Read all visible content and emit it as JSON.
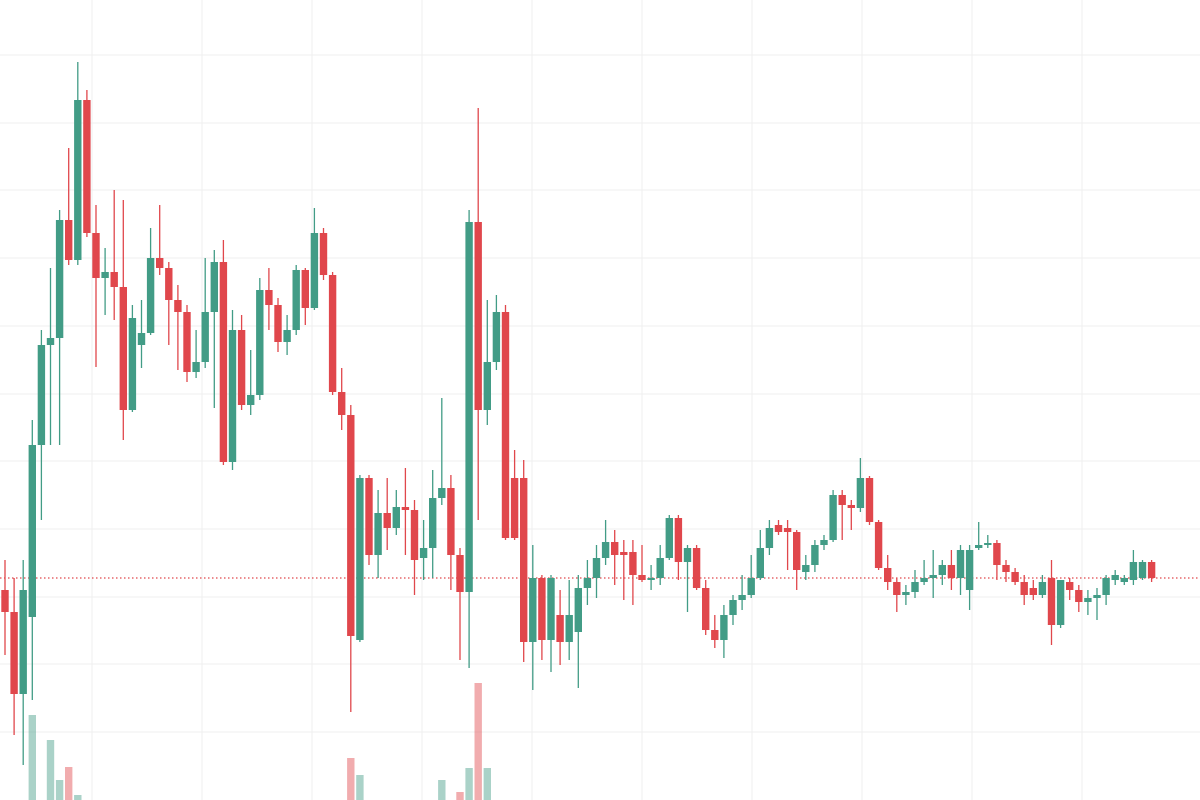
{
  "chart_data": {
    "type": "candlestick",
    "up_color": "#429c86",
    "down_color": "#e0474c",
    "grid": true,
    "ylim": [
      0,
      800
    ],
    "yticks": [
      68,
      136,
      203,
      271,
      339,
      406,
      474,
      542,
      610,
      677,
      745
    ],
    "y2lim": [
      0,
      800
    ],
    "open": [
      210,
      188,
      106,
      183,
      355,
      455,
      462,
      580,
      540,
      700,
      567,
      522,
      528,
      513,
      390,
      455,
      467,
      542,
      532,
      500,
      488,
      428,
      438,
      488,
      538,
      338,
      470,
      395,
      405,
      510,
      495,
      458,
      470,
      530,
      492,
      567,
      525,
      408,
      385,
      160,
      322,
      245,
      287,
      272,
      293,
      290,
      242,
      252,
      302,
      312,
      245,
      208,
      578,
      390,
      438,
      488,
      322,
      322,
      158,
      222,
      160,
      185,
      158,
      168,
      212,
      222,
      242,
      258,
      248,
      248,
      225,
      220,
      222,
      242,
      282,
      238,
      252,
      212,
      170,
      160,
      185,
      200,
      205,
      222,
      252,
      275,
      272,
      268,
      228,
      235,
      255,
      260,
      305,
      295,
      292,
      322,
      278,
      232,
      218,
      205,
      208,
      218,
      222,
      225,
      235,
      222,
      210,
      252,
      255,
      257,
      235,
      228,
      218,
      212,
      205,
      222,
      175,
      218,
      210,
      198,
      202,
      205,
      220,
      218,
      220,
      222,
      238
    ],
    "high": [
      240,
      222,
      240,
      380,
      470,
      532,
      590,
      652,
      738,
      710,
      595,
      552,
      610,
      600,
      495,
      500,
      572,
      595,
      538,
      515,
      495,
      470,
      542,
      550,
      560,
      490,
      485,
      450,
      522,
      532,
      502,
      485,
      535,
      532,
      592,
      572,
      528,
      432,
      395,
      325,
      325,
      310,
      322,
      310,
      332,
      300,
      280,
      330,
      402,
      325,
      252,
      590,
      692,
      500,
      505,
      495,
      350,
      340,
      255,
      225,
      225,
      210,
      220,
      225,
      240,
      255,
      280,
      270,
      260,
      260,
      255,
      235,
      255,
      285,
      285,
      255,
      255,
      220,
      185,
      195,
      205,
      225,
      245,
      270,
      280,
      280,
      280,
      270,
      245,
      260,
      265,
      310,
      310,
      300,
      342,
      324,
      280,
      245,
      222,
      215,
      230,
      240,
      250,
      240,
      250,
      255,
      255,
      278,
      265,
      260,
      240,
      232,
      225,
      220,
      225,
      240,
      220,
      222,
      215,
      210,
      212,
      225,
      230,
      225,
      250,
      240,
      240
    ],
    "low": [
      145,
      65,
      35,
      100,
      280,
      355,
      355,
      535,
      535,
      563,
      433,
      485,
      480,
      360,
      388,
      432,
      465,
      525,
      455,
      430,
      418,
      422,
      432,
      392,
      335,
      330,
      390,
      385,
      400,
      470,
      448,
      445,
      465,
      475,
      490,
      520,
      405,
      370,
      88,
      158,
      235,
      222,
      250,
      265,
      245,
      205,
      220,
      222,
      295,
      210,
      140,
      132,
      280,
      375,
      430,
      260,
      260,
      138,
      110,
      140,
      128,
      135,
      140,
      112,
      195,
      202,
      235,
      215,
      200,
      195,
      218,
      210,
      215,
      240,
      220,
      188,
      210,
      165,
      152,
      142,
      175,
      190,
      202,
      220,
      245,
      265,
      230,
      210,
      220,
      228,
      250,
      258,
      260,
      270,
      288,
      275,
      230,
      210,
      188,
      195,
      202,
      215,
      202,
      215,
      210,
      205,
      190,
      250,
      252,
      220,
      218,
      215,
      195,
      200,
      202,
      155,
      172,
      200,
      188,
      185,
      180,
      195,
      215,
      215,
      215,
      220,
      218
    ],
    "close": [
      188,
      106,
      210,
      355,
      455,
      462,
      580,
      540,
      700,
      567,
      522,
      528,
      513,
      390,
      482,
      467,
      542,
      532,
      500,
      488,
      428,
      438,
      488,
      538,
      338,
      470,
      395,
      405,
      510,
      495,
      458,
      470,
      530,
      492,
      567,
      525,
      408,
      385,
      164,
      322,
      245,
      287,
      272,
      293,
      290,
      240,
      252,
      302,
      312,
      245,
      208,
      578,
      390,
      438,
      488,
      262,
      262,
      158,
      222,
      160,
      222,
      158,
      185,
      212,
      222,
      242,
      258,
      245,
      245,
      225,
      220,
      222,
      242,
      282,
      238,
      252,
      212,
      170,
      160,
      185,
      200,
      205,
      222,
      252,
      272,
      268,
      268,
      230,
      235,
      255,
      260,
      305,
      295,
      292,
      322,
      278,
      232,
      218,
      205,
      208,
      218,
      222,
      225,
      235,
      222,
      250,
      250,
      255,
      257,
      235,
      228,
      218,
      205,
      205,
      218,
      175,
      220,
      210,
      198,
      202,
      205,
      222,
      225,
      222,
      238,
      238,
      222
    ],
    "volume": [
      0,
      0,
      0,
      85,
      0,
      60,
      20,
      33,
      5,
      0,
      0,
      0,
      0,
      0,
      0,
      0,
      0,
      0,
      0,
      0,
      0,
      0,
      0,
      0,
      0,
      0,
      0,
      0,
      0,
      0,
      0,
      0,
      0,
      0,
      0,
      0,
      0,
      0,
      42,
      25,
      0,
      0,
      0,
      0,
      0,
      0,
      0,
      0,
      20,
      0,
      8,
      32,
      117,
      32,
      0,
      0,
      0,
      0,
      0,
      0,
      0,
      0,
      0,
      0,
      0,
      0,
      0,
      0,
      0,
      0,
      0,
      0,
      0,
      0,
      0,
      0,
      0,
      0,
      0,
      0,
      0,
      0,
      0,
      0,
      0,
      0,
      0,
      0,
      0,
      0,
      0,
      0,
      0,
      0,
      0,
      0,
      0,
      0,
      0,
      0,
      0,
      0,
      0,
      0,
      0,
      0,
      0,
      0,
      0,
      0,
      0,
      0,
      0,
      0,
      0,
      0,
      0,
      0,
      0,
      0,
      0,
      0,
      0,
      0,
      0,
      0,
      0
    ]
  }
}
